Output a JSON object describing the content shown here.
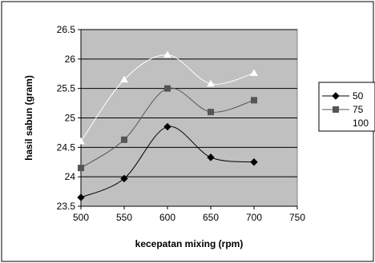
{
  "chart_data": {
    "type": "line",
    "title": "",
    "xlabel": "kecepatan mixing (rpm)",
    "ylabel": "hasil sabun (gram)",
    "x": [
      500,
      550,
      600,
      650,
      700
    ],
    "xlim": [
      500,
      750
    ],
    "ylim": [
      23.5,
      26.5
    ],
    "x_ticks": [
      "500",
      "550",
      "600",
      "650",
      "700",
      "750"
    ],
    "y_ticks": [
      "23.5",
      "24",
      "24.5",
      "25",
      "25.5",
      "26",
      "26.5"
    ],
    "grid": "horizontal",
    "legend_position": "right",
    "smooth": true,
    "series": [
      {
        "name": "50",
        "values": [
          23.65,
          23.97,
          24.85,
          24.33,
          24.25
        ],
        "color": "#000000",
        "marker": "diamond"
      },
      {
        "name": "75",
        "values": [
          24.15,
          24.63,
          25.5,
          25.1,
          25.3
        ],
        "color": "#555555",
        "marker": "square"
      },
      {
        "name": "100",
        "values": [
          24.6,
          25.65,
          26.07,
          25.58,
          25.76
        ],
        "color": "#ffffff",
        "marker": "triangle"
      }
    ],
    "plot_background": "#c0c0c0"
  }
}
